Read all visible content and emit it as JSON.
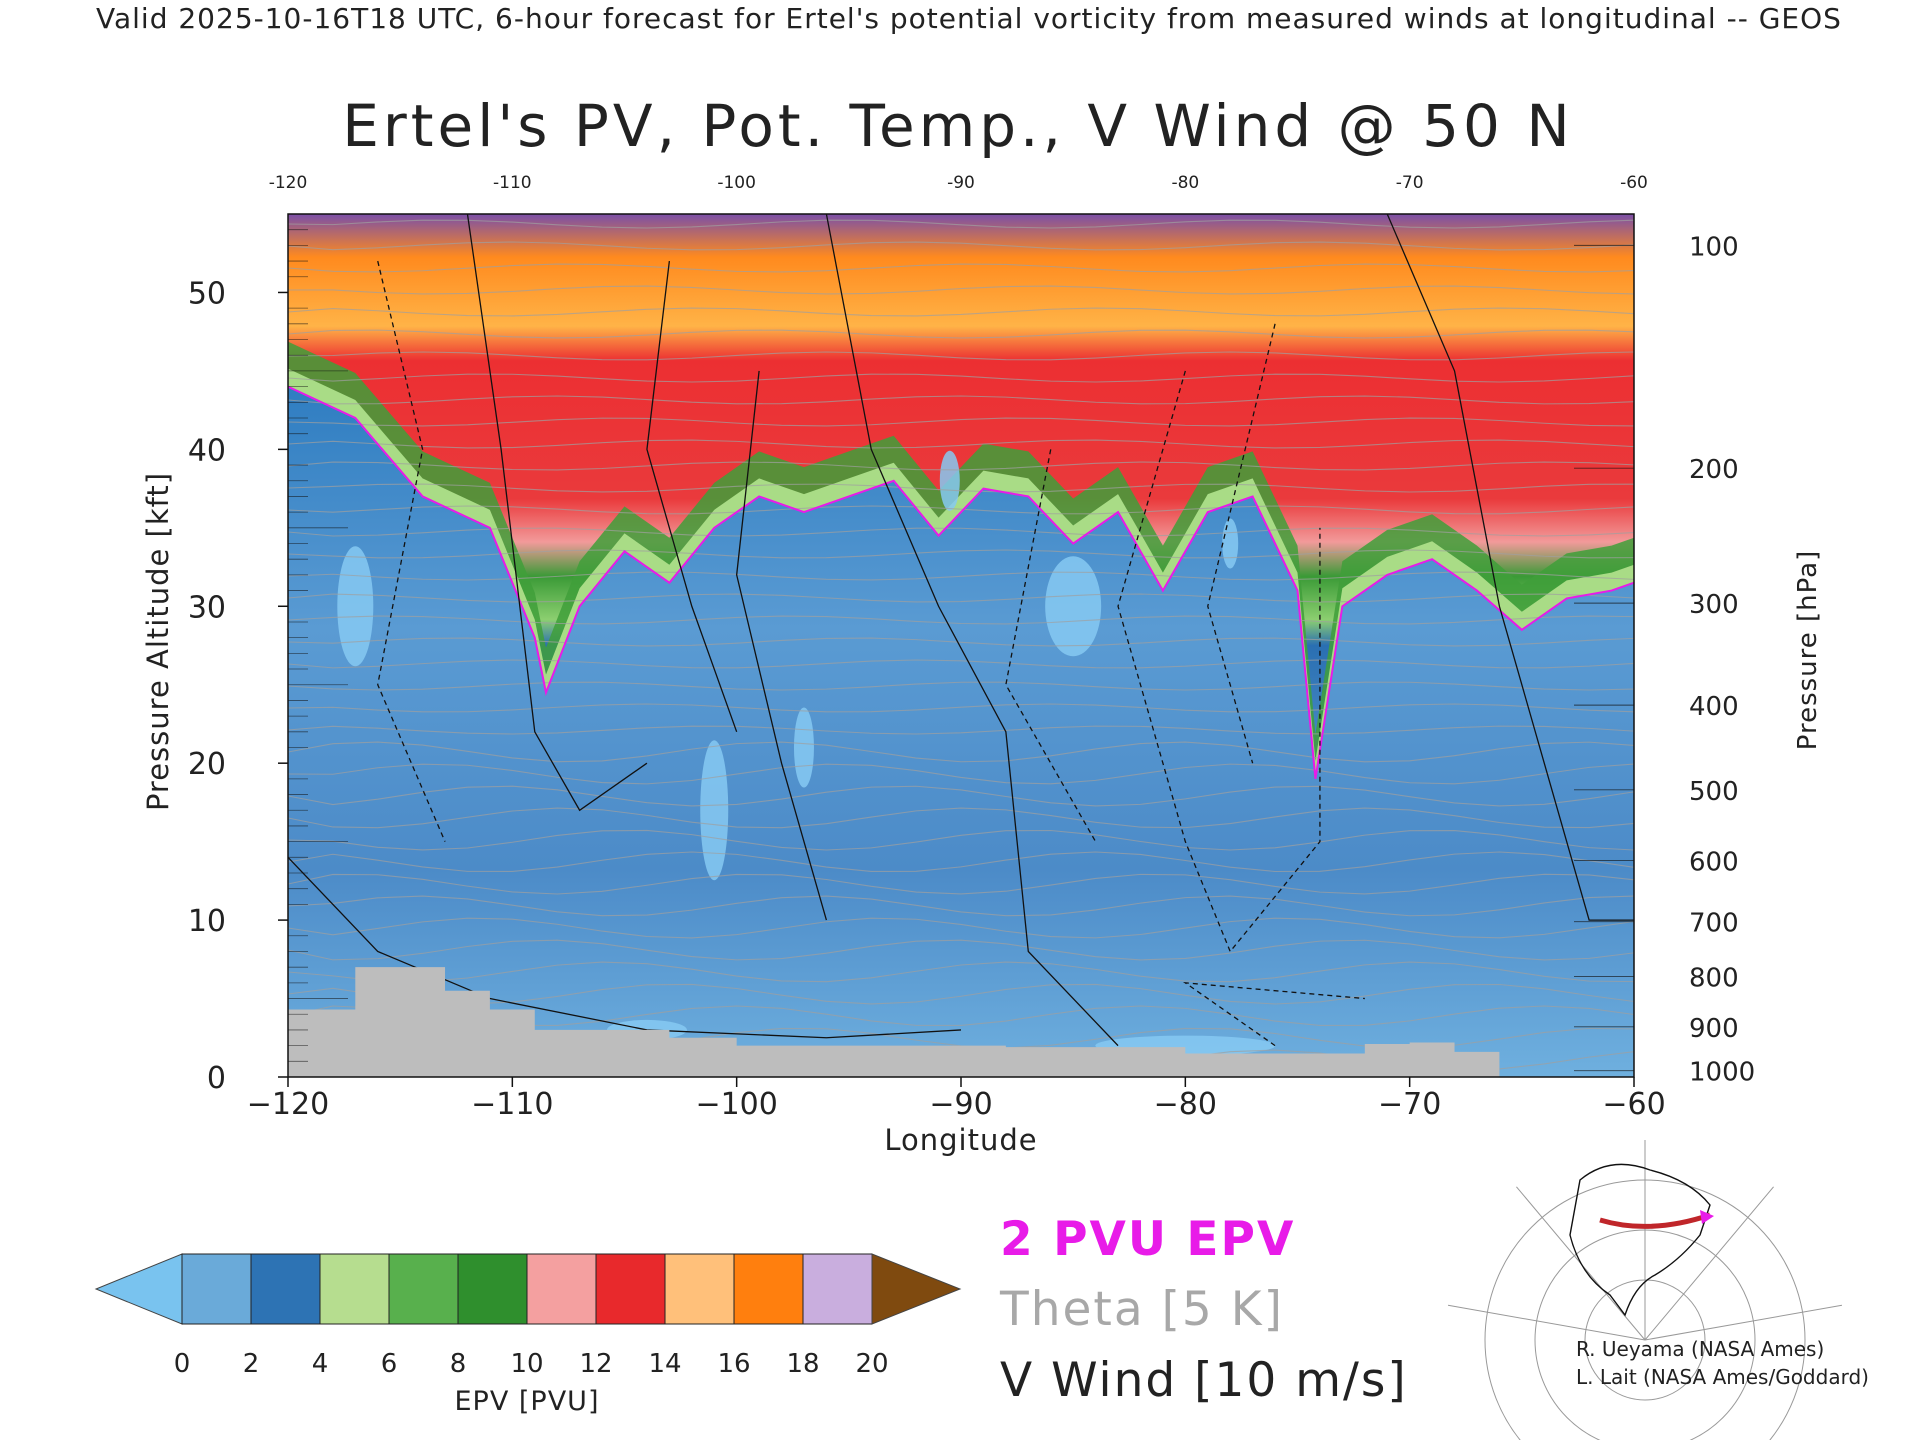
{
  "header": {
    "valid_line": "Valid 2025-10-16T18 UTC, 6-hour forecast for Ertel's potential vorticity from measured winds at longitudinal -- GEOS"
  },
  "title": "Ertel's PV, Pot. Temp., V Wind @ 50 N",
  "legend": {
    "pv_contour": "2 PVU EPV",
    "theta": "Theta [5 K]",
    "wind": "V Wind [10 m/s]",
    "pv_color": "#e81be8",
    "theta_color": "#a8a8a8"
  },
  "credits": {
    "line1": "R. Ueyama (NASA Ames)",
    "line2": "L. Lait (NASA Ames/Goddard)"
  },
  "chart_data": {
    "type": "heatmap",
    "title": "Ertel's PV, Pot. Temp., V Wind @ 50 N",
    "xlabel": "Longitude",
    "ylabel": "Pressure Altitude [kft]",
    "y2label": "Pressure [hPa]",
    "xlim": [
      -120,
      -60
    ],
    "ylim": [
      0,
      55
    ],
    "x_ticks": [
      -120,
      -110,
      -100,
      -90,
      -80,
      -70,
      -60
    ],
    "x_tick_labels": [
      "−120",
      "−110",
      "−100",
      "−90",
      "−80",
      "−70",
      "−60"
    ],
    "top_ticks": [
      -120,
      -110,
      -100,
      -90,
      -80,
      -70,
      -60
    ],
    "top_tick_labels": [
      "-120",
      "-110",
      "-100",
      "-90",
      "-80",
      "-70",
      "-60"
    ],
    "y_ticks": [
      0,
      10,
      20,
      30,
      40,
      50
    ],
    "y_tick_labels": [
      "0",
      "10",
      "20",
      "30",
      "40",
      "50"
    ],
    "pressure_ticks": [
      {
        "hpa": 100,
        "kft": 53
      },
      {
        "hpa": 200,
        "kft": 38.8
      },
      {
        "hpa": 300,
        "kft": 30.2
      },
      {
        "hpa": 400,
        "kft": 23.7
      },
      {
        "hpa": 500,
        "kft": 18.3
      },
      {
        "hpa": 600,
        "kft": 13.8
      },
      {
        "hpa": 700,
        "kft": 9.9
      },
      {
        "hpa": 800,
        "kft": 6.4
      },
      {
        "hpa": 900,
        "kft": 3.2
      },
      {
        "hpa": 1000,
        "kft": 0.4
      }
    ],
    "colorbar": {
      "label": "EPV [PVU]",
      "ticks": [
        0,
        2,
        4,
        6,
        8,
        10,
        12,
        14,
        16,
        18,
        20
      ],
      "colors": [
        "#79c3ef",
        "#6aaad9",
        "#2d73b4",
        "#b6dd8f",
        "#58b04d",
        "#2f8f2d",
        "#f4a0a0",
        "#e8292c",
        "#ffc07a",
        "#ff7f0e",
        "#c9aede",
        "#6a3f9f",
        "#fafa9a",
        "#7f4a0f"
      ]
    },
    "pv_profile_2pvu": {
      "lon": [
        -120,
        -117,
        -114,
        -111,
        -109,
        -108.5,
        -107,
        -105,
        -103,
        -101,
        -99,
        -97,
        -95,
        -93,
        -91,
        -89,
        -87,
        -85,
        -83,
        -81,
        -79,
        -77,
        -75,
        -74.2,
        -73,
        -71,
        -69,
        -67,
        -65,
        -63,
        -61,
        -60
      ],
      "kft": [
        44,
        42,
        37,
        35,
        28,
        24.5,
        30,
        33.5,
        31.5,
        35,
        37,
        36,
        37,
        38,
        34.5,
        37.5,
        37,
        34,
        36,
        31,
        36,
        37,
        31,
        19,
        30,
        32,
        33,
        31,
        28.5,
        30.5,
        31,
        31.5
      ]
    },
    "v_wind_contours": [
      "-30",
      "-10",
      "10",
      "30"
    ],
    "theta_levels_K": [
      280,
      290,
      300,
      310,
      320,
      330,
      340,
      350,
      360,
      370,
      380,
      390,
      400,
      410
    ],
    "terrain_kft": {
      "lon": [
        -120,
        -118,
        -117,
        -114,
        -113,
        -111,
        -109,
        -107,
        -103,
        -100,
        -96,
        -92,
        -88,
        -84,
        -80,
        -76,
        -72,
        -70,
        -68,
        -66,
        -64,
        -62,
        -60
      ],
      "kft": [
        4.3,
        4.3,
        7,
        7,
        5.5,
        4.3,
        3,
        3,
        2.5,
        2,
        2,
        2,
        1.9,
        1.9,
        1.5,
        1.5,
        2.1,
        2.2,
        1.6,
        0,
        0,
        0,
        0
      ]
    },
    "map_inset": {
      "latitude": 50,
      "lon_range": [
        -120,
        -60
      ]
    }
  }
}
